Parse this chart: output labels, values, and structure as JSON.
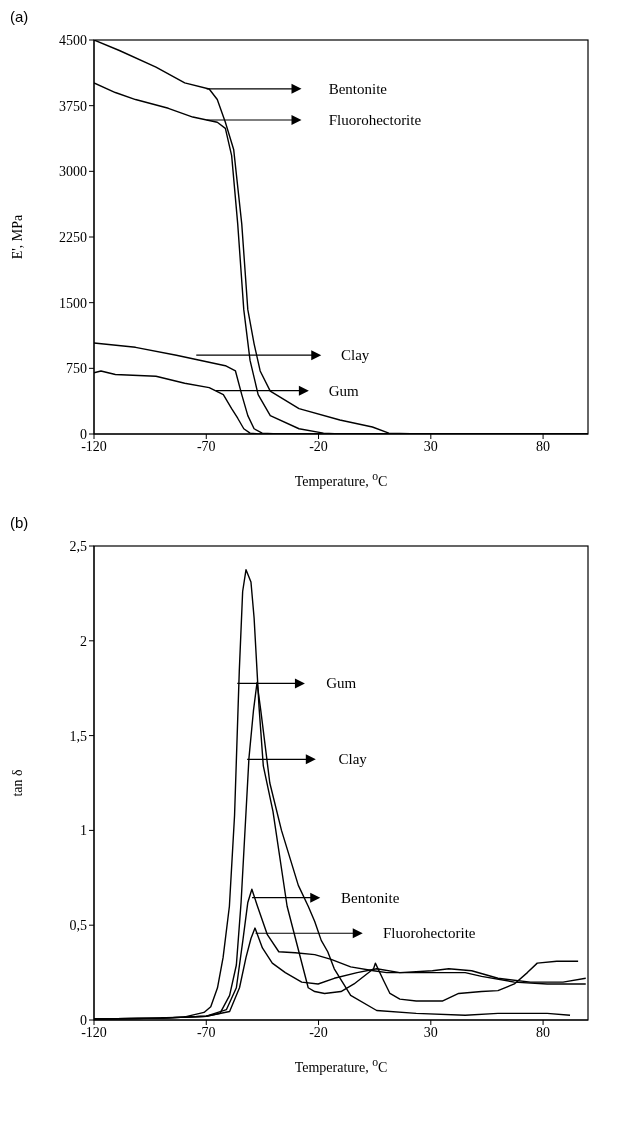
{
  "chart_data": [
    {
      "type": "line",
      "title": "(a)",
      "legend": "right",
      "xlabel": "Temperature, $^{o}$C",
      "ylabel": "E', MPa",
      "xlim": [
        -120,
        100
      ],
      "xticks": [
        -120,
        -70,
        -20,
        30,
        80
      ],
      "ylim": [
        0,
        4500
      ],
      "yticks": [
        0,
        750,
        1500,
        2250,
        3000,
        3750,
        4500
      ],
      "series": [
        {
          "name": "Bentonite",
          "color": "#000000",
          "x": [
            -120,
            -108.7,
            -92.4,
            -79.6,
            -68.7,
            -65.1,
            -61.5,
            -57.8,
            -54.2,
            -51.5,
            -48.7,
            -46,
            -41.5,
            -28.7,
            -10.5,
            4,
            11.3,
            25.8,
            60,
            100
          ],
          "values": [
            4500,
            4380,
            4190,
            4010,
            3940,
            3820,
            3560,
            3250,
            2400,
            1420,
            1030,
            720,
            490,
            290,
            160,
            80,
            10,
            0,
            0,
            0
          ]
        },
        {
          "name": "Fluorohectorite",
          "color": "#000000",
          "x": [
            -120,
            -110.5,
            -101.5,
            -86.9,
            -76,
            -65.1,
            -61.5,
            -58.7,
            -56,
            -53.3,
            -50.5,
            -46.9,
            -41.5,
            -28.7,
            -17.8,
            -10.5,
            100
          ],
          "values": [
            4010,
            3900,
            3820,
            3720,
            3620,
            3560,
            3490,
            3180,
            2400,
            1420,
            840,
            450,
            210,
            60,
            10,
            0,
            0
          ]
        },
        {
          "name": "Clay",
          "color": "#000000",
          "x": [
            -120,
            -101.5,
            -83.3,
            -72.4,
            -61.5,
            -57,
            -54.2,
            -51.5,
            -48.7,
            -45.1,
            -37.8,
            100
          ],
          "values": [
            1040,
            990,
            900,
            840,
            780,
            720,
            450,
            210,
            60,
            10,
            0,
            0
          ]
        },
        {
          "name": "Gum",
          "color": "#000000",
          "x": [
            -120,
            -116.9,
            -110.5,
            -92.4,
            -79.6,
            -68.7,
            -62.4,
            -58.7,
            -56,
            -53.3,
            -50.5,
            -46.9,
            100
          ],
          "values": [
            700,
            720,
            680,
            660,
            580,
            530,
            450,
            290,
            180,
            60,
            10,
            0,
            0
          ]
        }
      ]
    },
    {
      "type": "line",
      "title": "(b)",
      "legend": "center",
      "xlabel": "Temperature, $^{o}$C",
      "ylabel": "tan δ",
      "xlim": [
        -120,
        100
      ],
      "xticks": [
        -120,
        -70,
        -20,
        30,
        80
      ],
      "ylim": [
        0,
        2.5
      ],
      "yticks": [
        0,
        {
          "value": 0.5,
          "label": "0,5"
        },
        1,
        {
          "value": 1.5,
          "label": "1,5"
        },
        2,
        {
          "value": 2.5,
          "label": "2,5"
        }
      ],
      "series": [
        {
          "name": "Gum",
          "color": "#000000",
          "x": [
            -120,
            -100,
            -80,
            -71,
            -68,
            -65,
            -62.5,
            -59.7,
            -57.4,
            -55.3,
            -53.8,
            -52.3,
            -50.1,
            -48.7,
            -46.5,
            -44.6,
            -40.3,
            -34,
            -24.6,
            -21.7,
            -17.3,
            -10,
            -4.2,
            4.5,
            5.3,
            8.9,
            11.8,
            16.2,
            23.5,
            35.1,
            42.4,
            52.6,
            59.9,
            67.2,
            73,
            77.4,
            86.1,
            95.6
          ],
          "values": [
            0.005,
            0.008,
            0.015,
            0.04,
            0.07,
            0.17,
            0.33,
            0.6,
            1.08,
            1.84,
            2.26,
            2.375,
            2.31,
            2.12,
            1.65,
            1.34,
            1.1,
            0.6,
            0.17,
            0.15,
            0.14,
            0.15,
            0.19,
            0.27,
            0.3,
            0.21,
            0.14,
            0.11,
            0.1,
            0.1,
            0.14,
            0.15,
            0.155,
            0.19,
            0.25,
            0.3,
            0.31,
            0.31
          ]
        },
        {
          "name": "Clay",
          "color": "#000000",
          "x": [
            -120,
            -90,
            -70,
            -63.9,
            -59.6,
            -56.6,
            -54.5,
            -51,
            -49,
            -47.4,
            -45.7,
            -41.7,
            -36.5,
            -29,
            -24.6,
            -21.7,
            -18.8,
            -15.9,
            -13,
            -5.7,
            5.9,
            23.5,
            45.3,
            59.9,
            81.8,
            92
          ],
          "values": [
            0.005,
            0.01,
            0.02,
            0.035,
            0.13,
            0.29,
            0.62,
            1.38,
            1.63,
            1.78,
            1.63,
            1.25,
            1,
            0.71,
            0.6,
            0.52,
            0.42,
            0.36,
            0.27,
            0.13,
            0.05,
            0.035,
            0.025,
            0.035,
            0.035,
            0.025
          ]
        },
        {
          "name": "Bentonite",
          "color": "#000000",
          "x": [
            -120,
            -90,
            -70,
            -61,
            -56.6,
            -53.7,
            -51.5,
            -49.7,
            -47.2,
            -42.8,
            -37.7,
            -30.4,
            -21.7,
            -14.4,
            -5.7,
            4.5,
            10.4,
            30.7,
            45.3,
            52.6,
            67.2,
            81.8,
            99
          ],
          "values": [
            0.005,
            0.01,
            0.02,
            0.055,
            0.17,
            0.42,
            0.62,
            0.69,
            0.6,
            0.45,
            0.36,
            0.355,
            0.345,
            0.32,
            0.28,
            0.26,
            0.25,
            0.25,
            0.25,
            0.23,
            0.2,
            0.19,
            0.19
          ]
        },
        {
          "name": "Fluorohectorite",
          "color": "#000000",
          "x": [
            -120,
            -90,
            -70,
            -59.6,
            -55.2,
            -52.3,
            -50.1,
            -48.3,
            -45,
            -40.6,
            -34.8,
            -27.5,
            -20.2,
            -13,
            -2.8,
            5.9,
            16.2,
            30.7,
            38,
            48.2,
            59.9,
            74.4,
            88.9,
            99
          ],
          "values": [
            0.005,
            0.01,
            0.02,
            0.045,
            0.17,
            0.33,
            0.43,
            0.485,
            0.38,
            0.3,
            0.25,
            0.2,
            0.19,
            0.22,
            0.25,
            0.27,
            0.25,
            0.26,
            0.27,
            0.26,
            0.22,
            0.2,
            0.2,
            0.22
          ]
        }
      ]
    }
  ]
}
